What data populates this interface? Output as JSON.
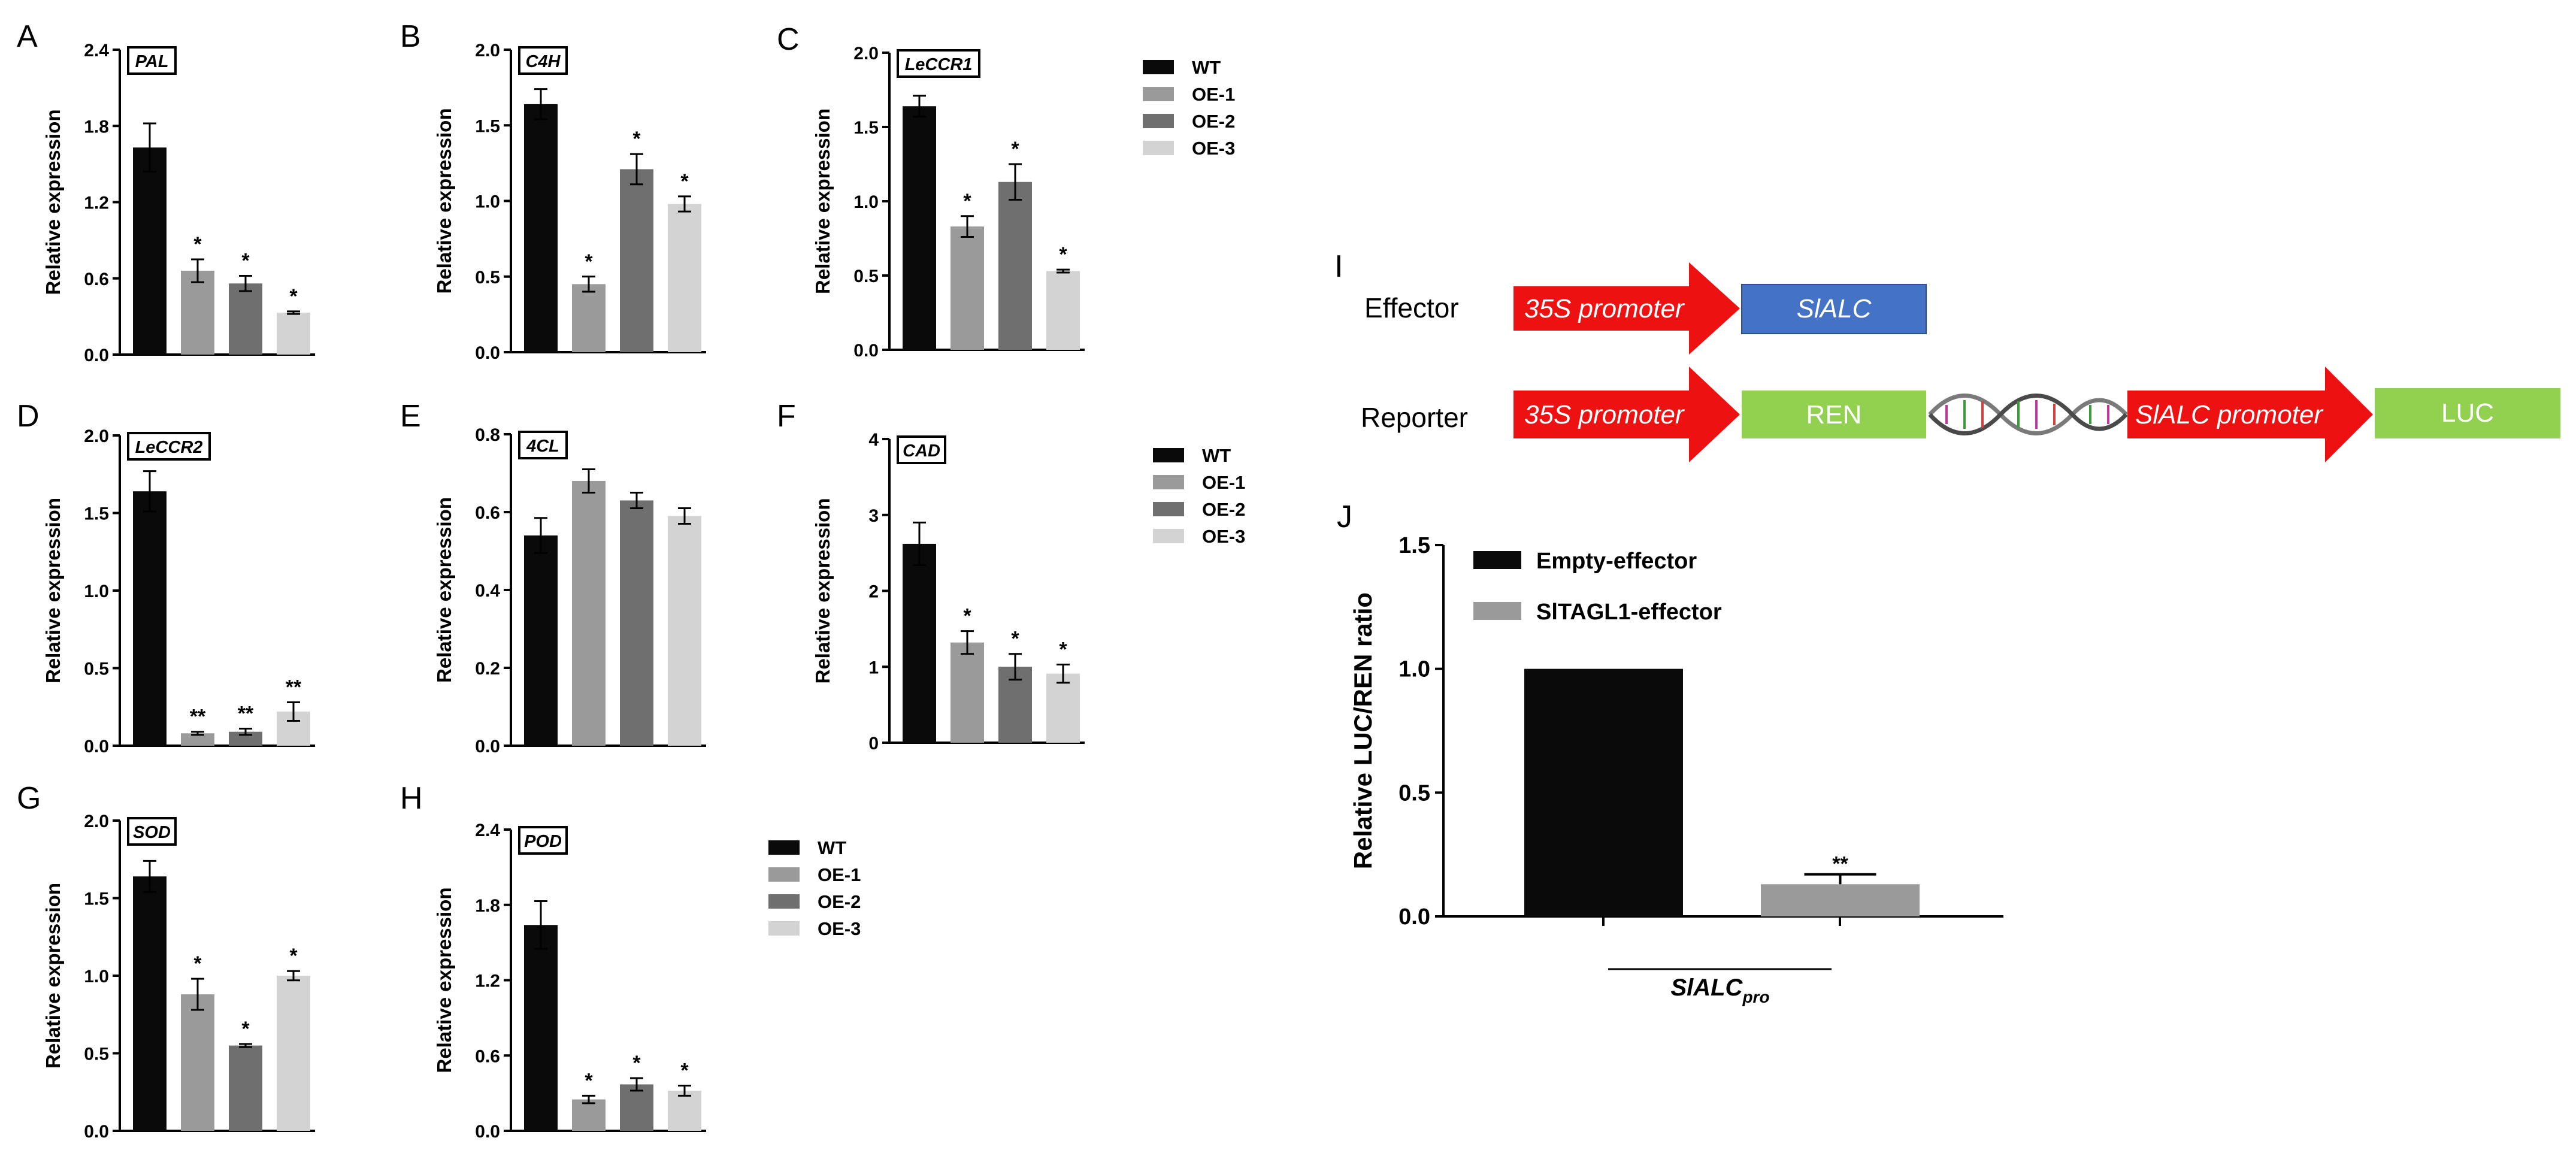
{
  "colors": {
    "WT": "#0a0a0a",
    "OE-1": "#9a9a9a",
    "OE-2": "#6f6f6f",
    "OE-3": "#d3d3d3",
    "promoter": "#ee1111",
    "slalc_box": "#4472c4",
    "ren_box": "#92d050",
    "luc_box": "#92d050"
  },
  "legends": [
    {
      "id": "legend-abc",
      "items": [
        "WT",
        "OE-1",
        "OE-2",
        "OE-3"
      ]
    },
    {
      "id": "legend-def",
      "items": [
        "WT",
        "OE-1",
        "OE-2",
        "OE-3"
      ]
    },
    {
      "id": "legend-gh",
      "items": [
        "WT",
        "OE-1",
        "OE-2",
        "OE-3"
      ]
    }
  ],
  "chart_data": [
    {
      "panel": "A",
      "type": "bar",
      "gene": "PAL",
      "ylabel": "Relative expression",
      "categories": [
        "WT",
        "OE-1",
        "OE-2",
        "OE-3"
      ],
      "values": [
        1.63,
        0.66,
        0.56,
        0.33
      ],
      "errors": [
        0.19,
        0.09,
        0.06,
        0.01
      ],
      "marks": [
        "",
        "*",
        "*",
        "*"
      ],
      "ylim": [
        0,
        2.4
      ],
      "yticks": [
        "0.0",
        "0.6",
        "1.2",
        "1.8",
        "2.4"
      ]
    },
    {
      "panel": "B",
      "type": "bar",
      "gene": "C4H",
      "ylabel": "Relative expression",
      "categories": [
        "WT",
        "OE-1",
        "OE-2",
        "OE-3"
      ],
      "values": [
        1.64,
        0.45,
        1.21,
        0.98
      ],
      "errors": [
        0.1,
        0.05,
        0.1,
        0.05
      ],
      "marks": [
        "",
        "*",
        "*",
        "*"
      ],
      "ylim": [
        0,
        2.0
      ],
      "yticks": [
        "0.0",
        "0.5",
        "1.0",
        "1.5",
        "2.0"
      ]
    },
    {
      "panel": "C",
      "type": "bar",
      "gene": "LeCCR1",
      "ylabel": "Relative expression",
      "categories": [
        "WT",
        "OE-1",
        "OE-2",
        "OE-3"
      ],
      "values": [
        1.64,
        0.83,
        1.13,
        0.53
      ],
      "errors": [
        0.07,
        0.07,
        0.12,
        0.01
      ],
      "marks": [
        "",
        "*",
        "*",
        "*"
      ],
      "ylim": [
        0,
        2.0
      ],
      "yticks": [
        "0.0",
        "0.5",
        "1.0",
        "1.5",
        "2.0"
      ]
    },
    {
      "panel": "D",
      "type": "bar",
      "gene": "LeCCR2",
      "ylabel": "Relative expression",
      "categories": [
        "WT",
        "OE-1",
        "OE-2",
        "OE-3"
      ],
      "values": [
        1.64,
        0.08,
        0.09,
        0.22
      ],
      "errors": [
        0.13,
        0.01,
        0.02,
        0.06
      ],
      "marks": [
        "",
        "**",
        "**",
        "**"
      ],
      "ylim": [
        0,
        2.0
      ],
      "yticks": [
        "0.0",
        "0.5",
        "1.0",
        "1.5",
        "2.0"
      ]
    },
    {
      "panel": "E",
      "type": "bar",
      "gene": "4CL",
      "ylabel": "Relative expression",
      "categories": [
        "WT",
        "OE-1",
        "OE-2",
        "OE-3"
      ],
      "values": [
        0.54,
        0.68,
        0.63,
        0.59
      ],
      "errors": [
        0.045,
        0.03,
        0.02,
        0.02
      ],
      "marks": [
        "",
        "",
        "",
        ""
      ],
      "ylim": [
        0,
        0.8
      ],
      "yticks": [
        "0.0",
        "0.2",
        "0.4",
        "0.6",
        "0.8"
      ]
    },
    {
      "panel": "F",
      "type": "bar",
      "gene": "CAD",
      "ylabel": "Relative expression",
      "categories": [
        "WT",
        "OE-1",
        "OE-2",
        "OE-3"
      ],
      "values": [
        2.62,
        1.32,
        1.0,
        0.91
      ],
      "errors": [
        0.28,
        0.15,
        0.17,
        0.12
      ],
      "marks": [
        "",
        "*",
        "*",
        "*"
      ],
      "ylim": [
        0,
        4
      ],
      "yticks": [
        "0",
        "1",
        "2",
        "3",
        "4"
      ]
    },
    {
      "panel": "G",
      "type": "bar",
      "gene": "SOD",
      "ylabel": "Relative expression",
      "categories": [
        "WT",
        "OE-1",
        "OE-2",
        "OE-3"
      ],
      "values": [
        1.64,
        0.88,
        0.55,
        1.0
      ],
      "errors": [
        0.1,
        0.1,
        0.01,
        0.03
      ],
      "marks": [
        "",
        "*",
        "*",
        "*"
      ],
      "ylim": [
        0,
        2.0
      ],
      "yticks": [
        "0.0",
        "0.5",
        "1.0",
        "1.5",
        "2.0"
      ]
    },
    {
      "panel": "H",
      "type": "bar",
      "gene": "POD",
      "ylabel": "Relative expression",
      "categories": [
        "WT",
        "OE-1",
        "OE-2",
        "OE-3"
      ],
      "values": [
        1.64,
        0.25,
        0.37,
        0.32
      ],
      "errors": [
        0.19,
        0.03,
        0.05,
        0.04
      ],
      "marks": [
        "",
        "*",
        "*",
        "*"
      ],
      "ylim": [
        0,
        2.4
      ],
      "yticks": [
        "0.0",
        "0.6",
        "1.2",
        "1.8",
        "2.4"
      ]
    },
    {
      "panel": "J",
      "type": "bar",
      "ylabel": "Relative LUC/REN ratio",
      "series": [
        {
          "name": "Empty-effector",
          "value": 1.0,
          "error": 0
        },
        {
          "name": "SlTAGL1-effector",
          "value": 0.13,
          "error": 0.04,
          "mark": "**"
        }
      ],
      "xcategory": "SlALC",
      "xcategory_sub": "pro",
      "ylim": [
        0,
        1.5
      ],
      "yticks": [
        "0.0",
        "0.5",
        "1.0",
        "1.5"
      ]
    }
  ],
  "diagram": {
    "panel": "I",
    "effector_label": "Effector",
    "reporter_label": "Reporter",
    "effector_promoter": "35S promoter",
    "effector_gene": "SlALC",
    "reporter_promoter": "35S promoter",
    "reporter_gene": "REN",
    "reporter_target_promoter": "SlALC promoter",
    "reporter_reporter_gene": "LUC"
  }
}
